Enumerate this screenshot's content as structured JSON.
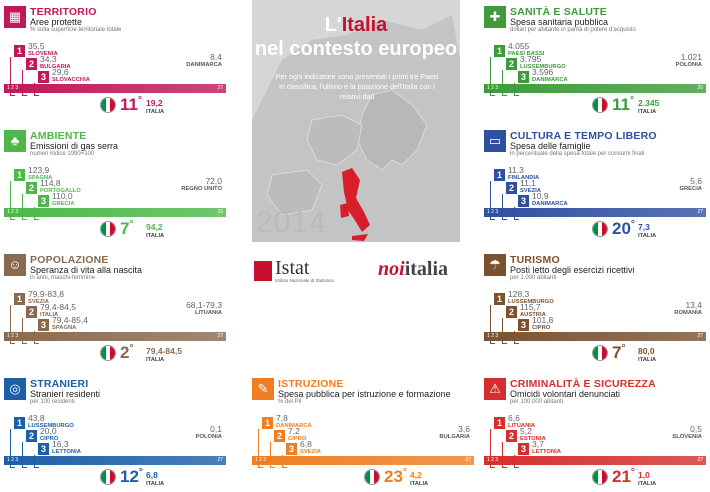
{
  "center": {
    "title_pre": "L'",
    "title_red": "Italia",
    "title_line2": "nel contesto europeo",
    "description": "Per ogni indicatore sono presentati i primi tre Paesi in classifica, l'ultimo e la posizione dell'Italia con i relativi dati",
    "year": "2014",
    "istat_name": "Istat",
    "istat_sub": "Istituto Nazionale di Statistica",
    "noi_prefix": "noi",
    "noi_suffix": "italia"
  },
  "panels": [
    {
      "title": "TERRITORIO",
      "subtitle": "Aree protette",
      "note": "% sulla superficie territoriale totale",
      "icon": "territory-icon",
      "top": [
        {
          "v": "35,5",
          "c": "SLOVENIA"
        },
        {
          "v": "34,3",
          "c": "BULGARIA"
        },
        {
          "v": "29,6",
          "c": "SLOVACCHIA"
        }
      ],
      "last": {
        "v": "8,4",
        "c": "DANIMARCA"
      },
      "italy": {
        "rank": "11",
        "v": "19,2",
        "c": "ITALIA"
      },
      "bar_end": "27"
    },
    {
      "title": "AMBIENTE",
      "subtitle": "Emissioni di gas serra",
      "note": "numeri indice 1990=100",
      "icon": "tree-icon",
      "top": [
        {
          "v": "123,9",
          "c": "SPAGNA"
        },
        {
          "v": "114,8",
          "c": "PORTOGALLO"
        },
        {
          "v": "110,0",
          "c": "GRECIA"
        }
      ],
      "last": {
        "v": "72,0",
        "c": "REGNO UNITO"
      },
      "italy": {
        "rank": "7",
        "v": "94,2",
        "c": "ITALIA"
      },
      "bar_end": "15"
    },
    {
      "title": "POPOLAZIONE",
      "subtitle": "Speranza di vita alla nascita",
      "note": "in anni, maschi-femmine",
      "icon": "people-icon",
      "top": [
        {
          "v": "79,9-83,8",
          "c": "SVEZIA"
        },
        {
          "v": "79,4-84,5",
          "c": "ITALIA"
        },
        {
          "v": "79,4-85,4",
          "c": "SPAGNA"
        }
      ],
      "last": {
        "v": "68,1-79,3",
        "c": "LITUANIA"
      },
      "italy": {
        "rank": "2",
        "v": "79,4-84,5",
        "c": "ITALIA"
      },
      "bar_end": "27"
    },
    {
      "title": "STRANIERI",
      "subtitle": "Stranieri residenti",
      "note": "per 100 residenti",
      "icon": "globe-icon",
      "top": [
        {
          "v": "43,8",
          "c": "LUSSEMBURGO"
        },
        {
          "v": "20,0",
          "c": "CIPRO"
        },
        {
          "v": "16,3",
          "c": "LETTONIA"
        }
      ],
      "last": {
        "v": "0,1",
        "c": "POLONIA"
      },
      "italy": {
        "rank": "12",
        "v": "6,8",
        "c": "ITALIA"
      },
      "bar_end": "27"
    },
    {
      "title": "ISTRUZIONE",
      "subtitle": "Spesa pubblica per istruzione e formazione",
      "note": "% del Pil",
      "icon": "teacher-icon",
      "top": [
        {
          "v": "7,8",
          "c": "DANIMARCA"
        },
        {
          "v": "7,2",
          "c": "CIPRO"
        },
        {
          "v": "6,8",
          "c": "SVEZIA"
        }
      ],
      "last": {
        "v": "3,6",
        "c": "BULGARIA"
      },
      "italy": {
        "rank": "23",
        "v": "4,2",
        "c": "ITALIA"
      },
      "bar_end": "27"
    },
    {
      "title": "SANITÀ E SALUTE",
      "subtitle": "Spesa sanitaria pubblica",
      "note": "dollari per abitante in parità di potere d'acquisto",
      "icon": "health-cross-icon",
      "top": [
        {
          "v": "4.055",
          "c": "PAESI BASSI"
        },
        {
          "v": "3.795",
          "c": "LUSSEMBURGO"
        },
        {
          "v": "3.596",
          "c": "DANIMARCA"
        }
      ],
      "last": {
        "v": "1.021",
        "c": "POLONIA"
      },
      "italy": {
        "rank": "11",
        "v": "2.345",
        "c": "ITALIA"
      },
      "bar_end": "20"
    },
    {
      "title": "CULTURA E TEMPO LIBERO",
      "subtitle": "Spesa delle famiglie",
      "note": "in percentuale della spesa totale per consumi finali",
      "icon": "monitor-icon",
      "top": [
        {
          "v": "11,3",
          "c": "FINLANDIA"
        },
        {
          "v": "11,1",
          "c": "SVEZIA"
        },
        {
          "v": "10,9",
          "c": "DANIMARCA"
        }
      ],
      "last": {
        "v": "5,6",
        "c": "GRECIA"
      },
      "italy": {
        "rank": "20",
        "v": "7,3",
        "c": "ITALIA"
      },
      "bar_end": "27"
    },
    {
      "title": "TURISMO",
      "subtitle": "Posti letto degli esercizi ricettivi",
      "note": "per 1.000 abitanti",
      "icon": "umbrella-icon",
      "top": [
        {
          "v": "128,3",
          "c": "LUSSEMBURGO"
        },
        {
          "v": "115,7",
          "c": "AUSTRIA"
        },
        {
          "v": "101,8",
          "c": "CIPRO"
        }
      ],
      "last": {
        "v": "13,4",
        "c": "ROMANIA"
      },
      "italy": {
        "rank": "7",
        "v": "80,0",
        "c": "ITALIA"
      },
      "bar_end": "27"
    },
    {
      "title": "CRIMINALITÀ E SICUREZZA",
      "subtitle": "Omicidi volontari denunciati",
      "note": "per 100.000 abitanti",
      "icon": "siren-icon",
      "top": [
        {
          "v": "6,6",
          "c": "LITUANIA"
        },
        {
          "v": "5,2",
          "c": "ESTONIA"
        },
        {
          "v": "3,7",
          "c": "LETTONIA"
        }
      ],
      "last": {
        "v": "0,5",
        "c": "SLOVENIA"
      },
      "italy": {
        "rank": "21",
        "v": "1,0",
        "c": "ITALIA"
      },
      "bar_end": "27"
    }
  ],
  "colors": {
    "territorio": "#c0185a",
    "ambiente": "#4db848",
    "popolazione": "#8a6a4f",
    "stranieri": "#1c5fa8",
    "istruzione": "#ef7d22",
    "sanita": "#3e9a3a",
    "cultura": "#2f4f9f",
    "turismo": "#7a5230",
    "criminalita": "#d42e2e",
    "italy_red": "#c8102e",
    "italy_green": "#009246"
  }
}
